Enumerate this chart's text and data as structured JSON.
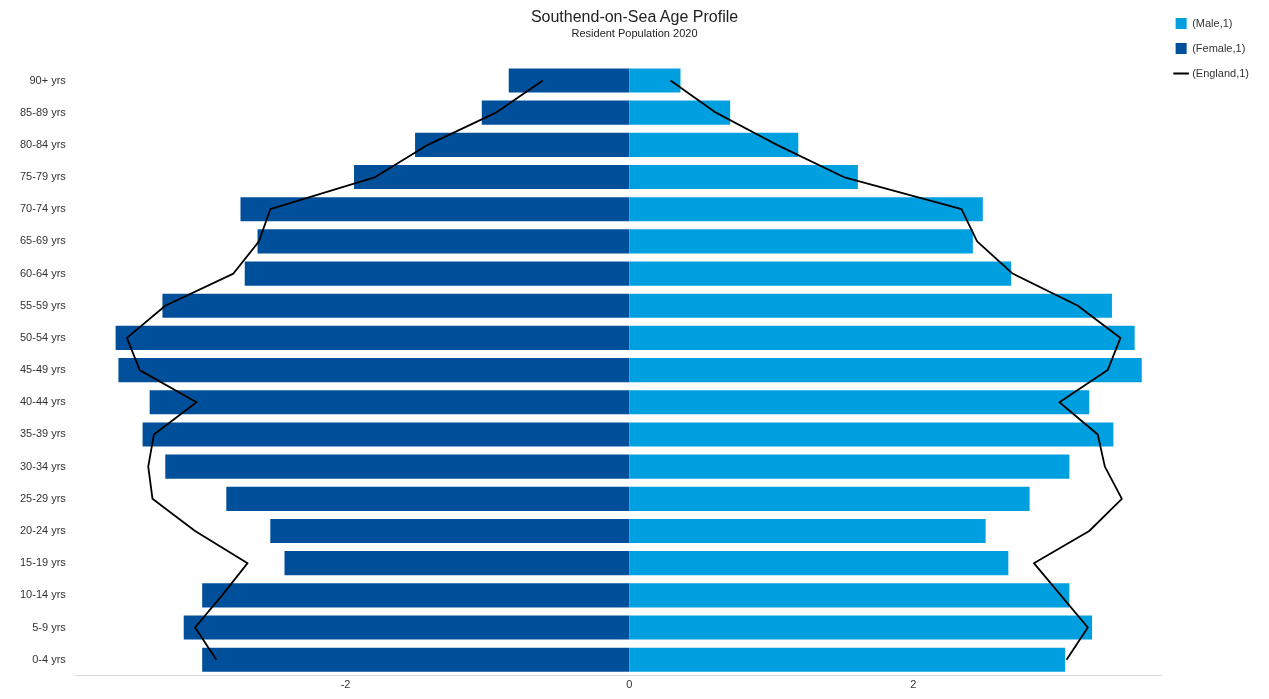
{
  "chart_data": {
    "type": "bar",
    "orientation": "horizontal",
    "title": "Southend-on-Sea Age Profile",
    "subtitle": "Resident Population 2020",
    "categories": [
      "90+ yrs",
      "85-89 yrs",
      "80-84 yrs",
      "75-79 yrs",
      "70-74 yrs",
      "65-69 yrs",
      "60-64 yrs",
      "55-59 yrs",
      "50-54 yrs",
      "45-49 yrs",
      "40-44 yrs",
      "35-39 yrs",
      "30-34 yrs",
      "25-29 yrs",
      "20-24 yrs",
      "15-19 yrs",
      "10-14 yrs",
      "5-9 yrs",
      "0-4 yrs"
    ],
    "series": [
      {
        "name": "(Male,1)",
        "color": "#009fdf",
        "values": [
          0.36,
          0.71,
          1.19,
          1.61,
          2.49,
          2.42,
          2.69,
          3.4,
          3.56,
          3.61,
          3.24,
          3.41,
          3.1,
          2.82,
          2.51,
          2.67,
          3.1,
          3.26,
          3.07
        ]
      },
      {
        "name": "(Female,1)",
        "color": "#004f9a",
        "values": [
          -0.85,
          -1.04,
          -1.51,
          -1.94,
          -2.74,
          -2.62,
          -2.71,
          -3.29,
          -3.62,
          -3.6,
          -3.38,
          -3.43,
          -3.27,
          -2.84,
          -2.53,
          -2.43,
          -3.01,
          -3.14,
          -3.01
        ]
      },
      {
        "name": "(England,1)",
        "type": "line",
        "color": "#000000",
        "values": [
          0.29,
          0.61,
          1.04,
          1.51,
          2.34,
          2.45,
          2.7,
          3.16,
          3.46,
          3.37,
          3.03,
          3.3,
          3.35,
          3.47,
          3.24,
          2.85,
          3.04,
          3.23,
          3.08
        ]
      },
      {
        "type": "line",
        "color": "#000000",
        "values": [
          -0.61,
          -0.94,
          -1.42,
          -1.79,
          -2.53,
          -2.61,
          -2.79,
          -3.27,
          -3.54,
          -3.45,
          -3.05,
          -3.35,
          -3.39,
          -3.36,
          -3.06,
          -2.69,
          -2.87,
          -3.06,
          -2.91
        ]
      }
    ],
    "stacked": true,
    "xlim": [
      -3.9,
      3.75
    ],
    "xticks": [
      -2,
      0,
      2
    ],
    "grid": false,
    "legend": "top right",
    "marker": "none",
    "line_style": "solid"
  }
}
